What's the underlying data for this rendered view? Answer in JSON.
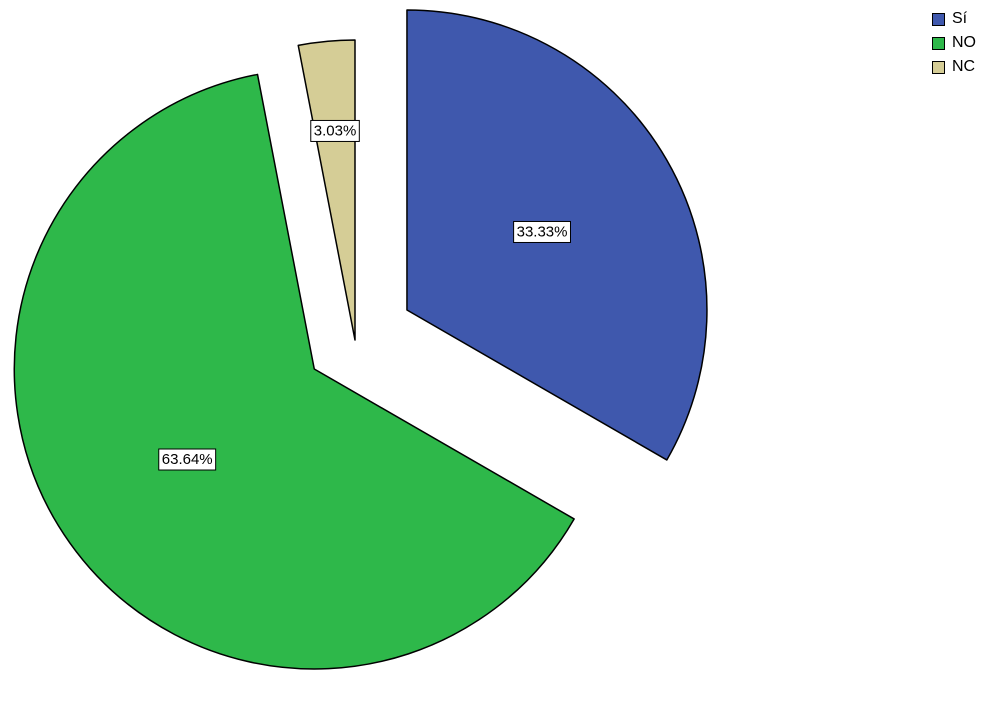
{
  "chart_data": {
    "type": "pie",
    "title": "",
    "exploded": true,
    "legend_position": "top-right",
    "slices": [
      {
        "label": "Sí",
        "value": 33.33,
        "display": "33.33%",
        "color": "#3f58ad"
      },
      {
        "label": "NO",
        "value": 63.64,
        "display": "63.64%",
        "color": "#2eb84a"
      },
      {
        "label": "NC",
        "value": 3.03,
        "display": "3.03%",
        "color": "#d5cd96"
      }
    ]
  }
}
